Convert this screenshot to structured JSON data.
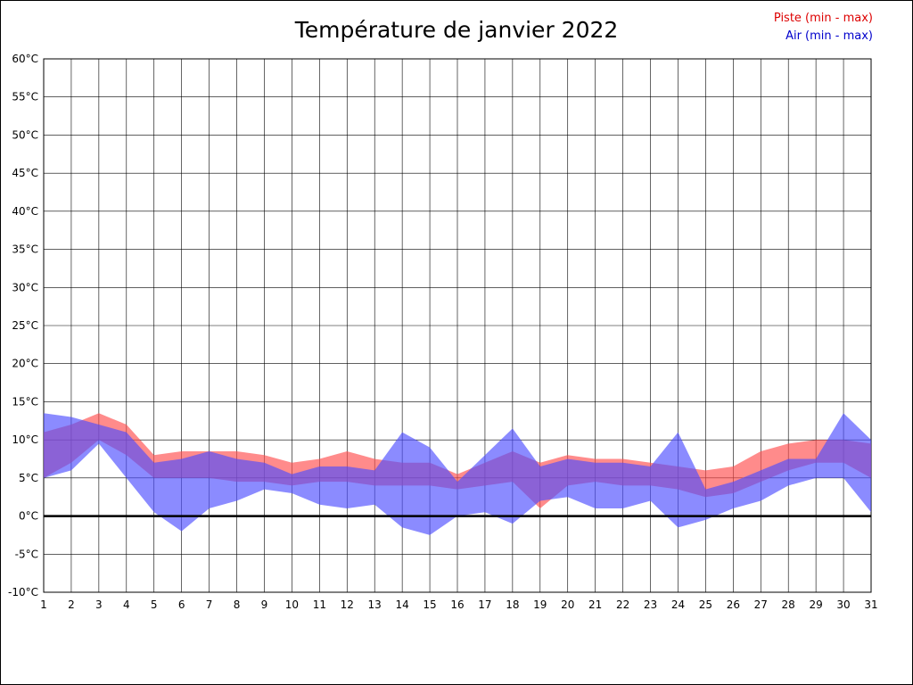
{
  "chart_data": {
    "type": "area",
    "title": "Température de janvier 2022",
    "xlabel": "",
    "ylabel": "",
    "ylim": [
      -10,
      60
    ],
    "ytick_step": 5,
    "ytick_suffix": "°C",
    "grid": true,
    "legend_position": "top-right",
    "legend": [
      {
        "label": "Piste (min - max)",
        "color": "#dd0000"
      },
      {
        "label": "Air (min - max)",
        "color": "#0000cc"
      }
    ],
    "days": [
      1,
      2,
      3,
      4,
      5,
      6,
      7,
      8,
      9,
      10,
      11,
      12,
      13,
      14,
      15,
      16,
      17,
      18,
      19,
      20,
      21,
      22,
      23,
      24,
      25,
      26,
      27,
      28,
      29,
      30,
      31
    ],
    "series": [
      {
        "name": "Piste (min - max)",
        "fill": "#ff4d4d",
        "min": [
          5,
          7,
          10,
          8,
          5,
          5,
          5,
          4.5,
          4.5,
          4,
          4.5,
          4.5,
          4,
          4,
          4,
          3.5,
          4,
          4.5,
          1,
          4,
          4.5,
          4,
          4,
          3.5,
          2.5,
          3,
          4.5,
          6,
          7,
          7,
          5
        ],
        "max": [
          11,
          12,
          13.5,
          12,
          8,
          8.5,
          8.5,
          8.5,
          8,
          7,
          7.5,
          8.5,
          7.5,
          7,
          7,
          5.5,
          7,
          8.5,
          7,
          8,
          7.5,
          7.5,
          7,
          6.5,
          6,
          6.5,
          8.5,
          9.5,
          10,
          10,
          9.5
        ]
      },
      {
        "name": "Air (min - max)",
        "fill": "#4d4dff",
        "min": [
          5,
          6,
          9.5,
          5,
          0.5,
          -2,
          1,
          2,
          3.5,
          3,
          1.5,
          1,
          1.5,
          -1.5,
          -2.5,
          0,
          0.5,
          -1,
          2,
          2.5,
          1,
          1,
          2,
          -1.5,
          -0.5,
          1,
          2,
          4,
          5,
          5,
          0.5
        ],
        "max": [
          13.5,
          13,
          12,
          11,
          7,
          7.5,
          8.5,
          7.5,
          7,
          5.5,
          6.5,
          6.5,
          6,
          11,
          9,
          4.5,
          8,
          11.5,
          6.5,
          7.5,
          7,
          7,
          6.5,
          11,
          3.5,
          4.5,
          6,
          7.5,
          7.5,
          13.5,
          10
        ]
      }
    ]
  }
}
